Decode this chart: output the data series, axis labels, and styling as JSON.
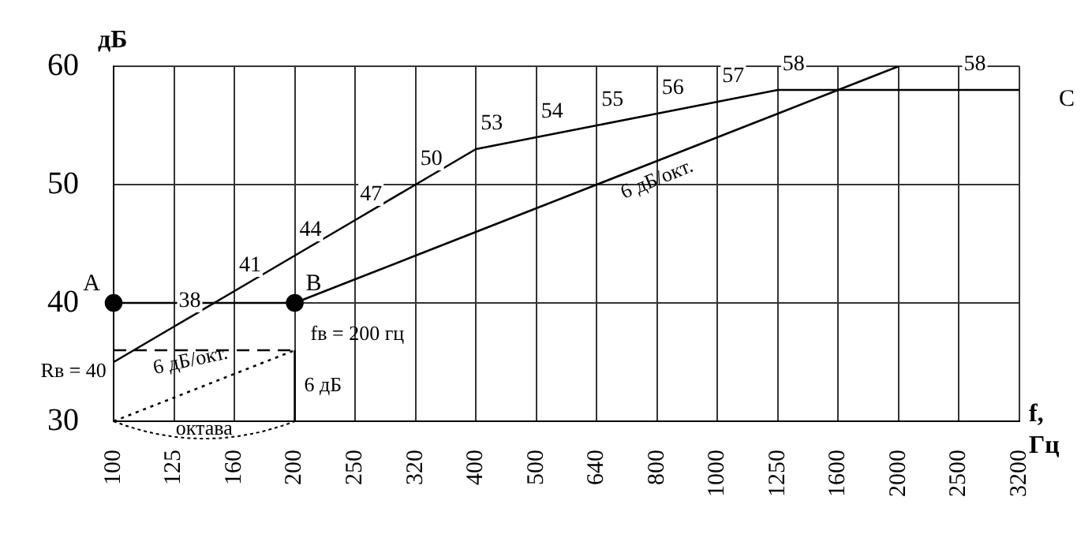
{
  "chart_data": {
    "type": "line",
    "ylabel": "дБ",
    "xlabel": "f, Гц",
    "categories": [
      "100",
      "125",
      "160",
      "200",
      "250",
      "320",
      "400",
      "500",
      "640",
      "800",
      "1000",
      "1250",
      "1600",
      "2000",
      "2500",
      "3200"
    ],
    "series": [
      {
        "color": "#000000",
        "values": [
          35,
          38,
          41,
          44,
          47,
          50,
          53,
          54,
          55,
          56,
          57,
          58,
          58,
          58,
          58,
          58
        ],
        "value_labels": [
          null,
          "38",
          "41",
          "44",
          "47",
          "50",
          "53",
          "54",
          "55",
          "56",
          "57",
          "58",
          null,
          null,
          "58",
          null
        ]
      },
      {
        "color": "#000000",
        "x": [
          "100",
          "200"
        ],
        "values": [
          40,
          40
        ],
        "marker": "circle"
      },
      {
        "color": "#000000",
        "values": [
          null,
          null,
          null,
          40,
          42,
          44,
          46,
          48,
          50,
          52,
          54,
          56,
          58,
          60,
          null,
          null
        ]
      },
      {
        "color": "#000000",
        "x": [
          "100",
          "200"
        ],
        "values": [
          36,
          36
        ],
        "line_style": "dashed"
      },
      {
        "color": "#000000",
        "x": [
          "100",
          "200"
        ],
        "values": [
          30,
          36
        ],
        "line_style": "dotted"
      },
      {
        "color": "#000000",
        "x": [
          "200",
          "200"
        ],
        "values": [
          30,
          36
        ]
      }
    ],
    "ylim": [
      30,
      60
    ],
    "yticks": [
      30,
      40,
      50,
      60
    ],
    "grid": true,
    "legend": false,
    "marker": "none",
    "annotations": [
      {
        "text": "A",
        "x": "100",
        "y": 40
      },
      {
        "text": "B",
        "x": "200",
        "y": 40
      },
      {
        "text": "C",
        "x": "3200",
        "y": 58
      },
      {
        "text": "fв = 200 гц",
        "x": "200",
        "y": 40
      },
      {
        "text": "6 дБ/окт.",
        "x": "800",
        "y": 52
      },
      "6 дБ/окт.",
      {
        "text": "6 дБ",
        "x": "200",
        "y": 33
      },
      "октава",
      "Rв = 40"
    ]
  }
}
